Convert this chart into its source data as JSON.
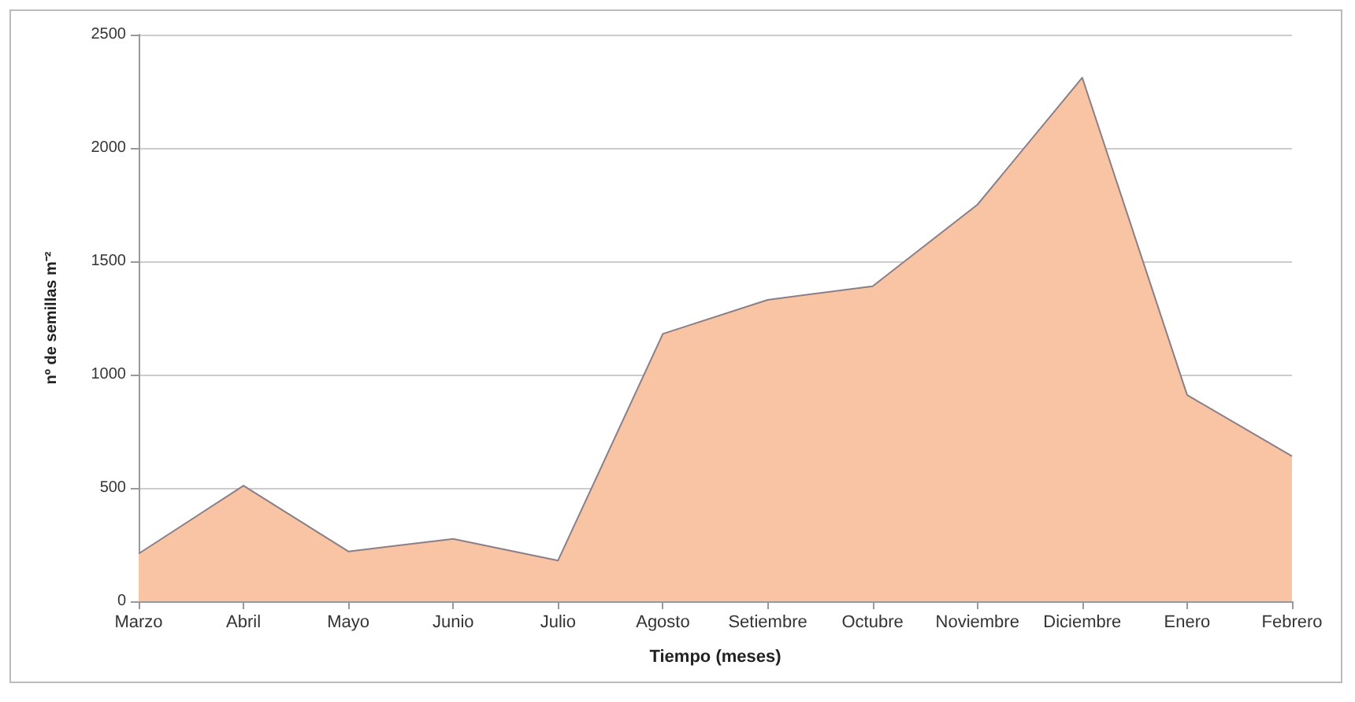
{
  "chart_data": {
    "type": "area",
    "xlabel": "Tiempo (meses)",
    "ylabel": "nº de semillas m⁻²",
    "categories": [
      "Marzo",
      "Abril",
      "Mayo",
      "Junio",
      "Julio",
      "Agosto",
      "Setiembre",
      "Octubre",
      "Noviembre",
      "Diciembre",
      "Enero",
      "Febrero"
    ],
    "series": [
      {
        "color": "#f8c4a4",
        "values": [
          210,
          510,
          220,
          275,
          180,
          1180,
          1330,
          1390,
          1750,
          2310,
          910,
          640
        ]
      }
    ],
    "ylim": [
      0,
      2500
    ],
    "yticks": [
      0,
      500,
      1000,
      1500,
      2000,
      2500
    ],
    "grid": "y"
  }
}
